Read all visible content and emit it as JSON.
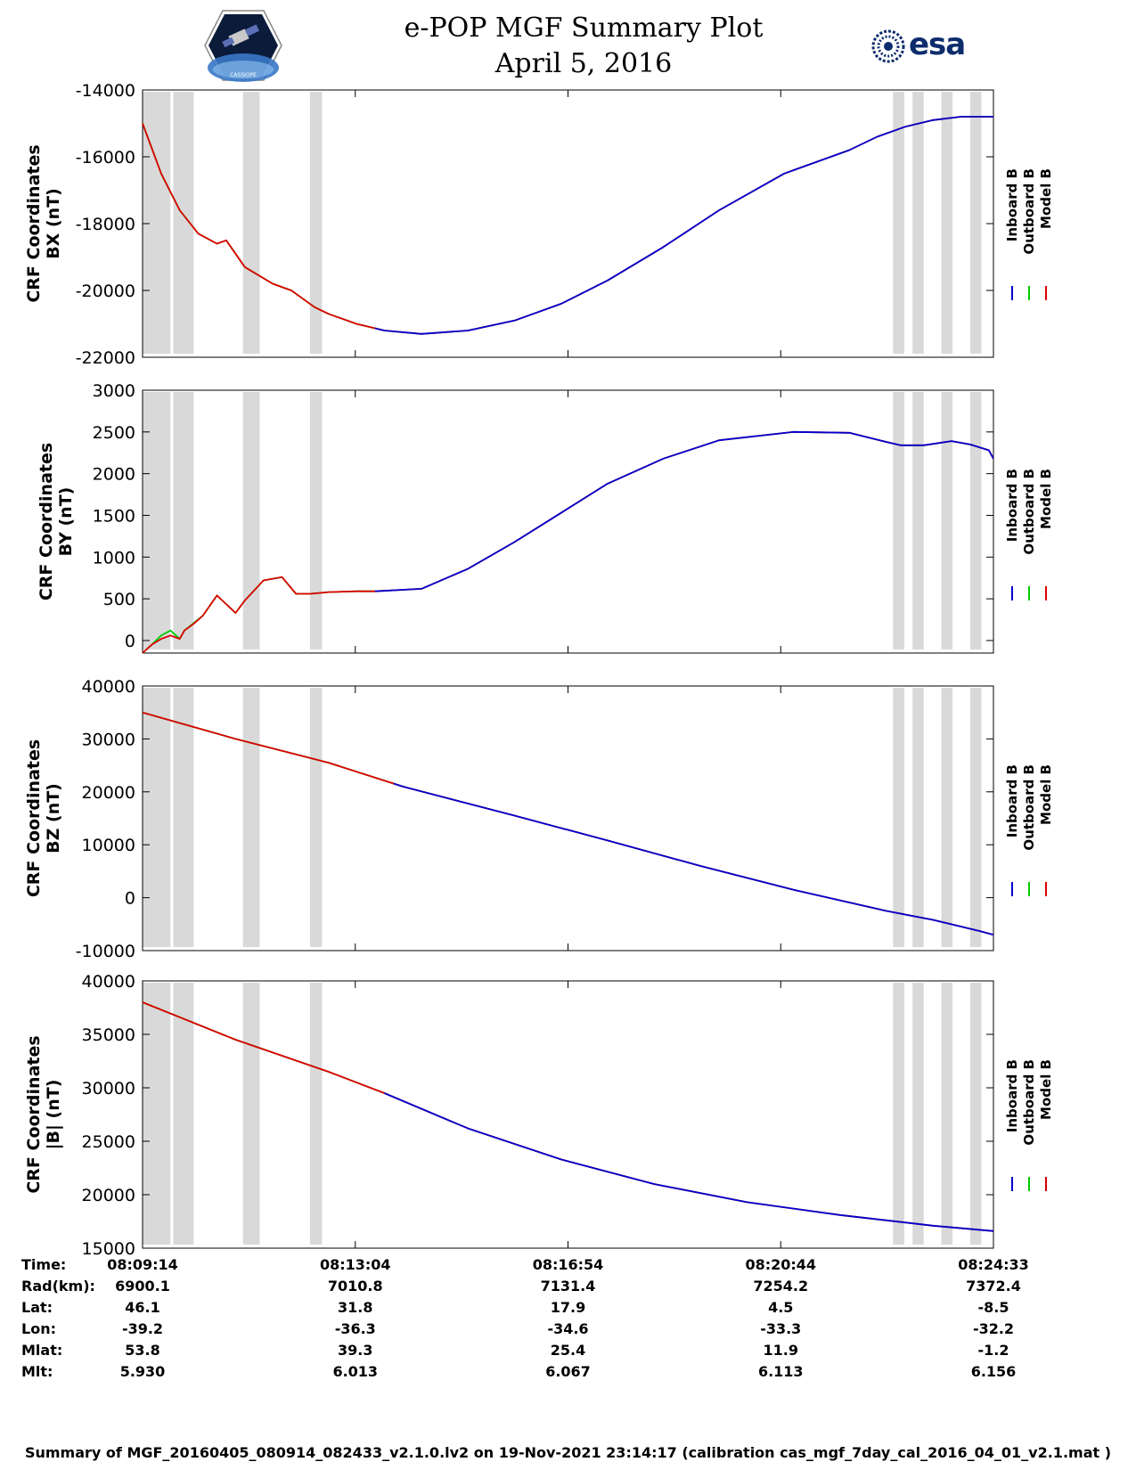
{
  "header": {
    "title": "e-POP MGF Summary Plot",
    "date": "April 5, 2016",
    "logo_left": "CASSIOPE",
    "logo_right": "esa"
  },
  "legend": {
    "items": [
      "Inboard B",
      "Outboard B",
      "Model B"
    ]
  },
  "colors": {
    "inboard": "#0000cc",
    "outboard": "#00cc00",
    "model": "#dd0000",
    "shade": "#d9d9d9"
  },
  "chart_data": [
    {
      "type": "line",
      "panel": "bx",
      "ylabel1": "CRF Coordinates",
      "ylabel2": "BX (nT)",
      "ylim": [
        -22000,
        -14000
      ],
      "yticks": [
        -14000,
        -16000,
        -18000,
        -20000,
        -22000
      ],
      "ytick_labels": [
        "-14000",
        "-16000",
        "-18000",
        "-20000",
        "-22000"
      ],
      "x": [
        0,
        20,
        40,
        60,
        80,
        90,
        100,
        110,
        140,
        160,
        175,
        185,
        200,
        230,
        260,
        300,
        350,
        400,
        450,
        500,
        560,
        620,
        690,
        760,
        790,
        820,
        850,
        880,
        915
      ],
      "series": [
        {
          "name": "Outboard B",
          "color": "#00cc00",
          "upto": 250,
          "values": [
            -15000,
            -16500,
            -17600,
            -18300,
            -18600,
            -18500,
            -18900,
            -19300,
            -19800,
            -20000,
            -20300,
            -20500,
            -20700,
            -21000,
            -21200,
            -21300,
            -21200,
            -20900,
            -20400,
            -19700,
            -18700,
            -17600,
            -16500,
            -15800,
            -15400,
            -15100,
            -14900,
            -14800,
            -14800
          ]
        },
        {
          "name": "Model B",
          "color": "#dd0000",
          "values": [
            -15000,
            -16500,
            -17600,
            -18300,
            -18600,
            -18500,
            -18900,
            -19300,
            -19800,
            -20000,
            -20300,
            -20500,
            -20700,
            -21000,
            -21200,
            -21300,
            -21200,
            -20900,
            -20400,
            -19700,
            -18700,
            -17600,
            -16500,
            -15800,
            -15400,
            -15100,
            -14900,
            -14800,
            -14800
          ]
        },
        {
          "name": "Inboard B",
          "color": "#0000cc",
          "from": 250,
          "values": [
            -15000,
            -16500,
            -17600,
            -18300,
            -18600,
            -18500,
            -18900,
            -19300,
            -19800,
            -20000,
            -20300,
            -20500,
            -20700,
            -21000,
            -21200,
            -21300,
            -21200,
            -20900,
            -20400,
            -19700,
            -18700,
            -17600,
            -16500,
            -15800,
            -15400,
            -15100,
            -14900,
            -14800,
            -14800
          ]
        }
      ]
    },
    {
      "type": "line",
      "panel": "by",
      "ylabel1": "CRF Coordinates",
      "ylabel2": "BY (nT)",
      "ylim": [
        -150,
        3000
      ],
      "yticks": [
        3000,
        2500,
        2000,
        1500,
        1000,
        500,
        0
      ],
      "ytick_labels": [
        "3000",
        "2500",
        "2000",
        "1500",
        "1000",
        "500",
        "0"
      ],
      "x": [
        0,
        10,
        20,
        30,
        40,
        45,
        55,
        65,
        80,
        100,
        110,
        120,
        130,
        150,
        165,
        180,
        190,
        200,
        230,
        250,
        300,
        350,
        400,
        450,
        500,
        560,
        620,
        700,
        760,
        800,
        815,
        840,
        870,
        890,
        910,
        915
      ],
      "series": [
        {
          "name": "Outboard B",
          "color": "#00cc00",
          "upto": 250,
          "values": [
            -150,
            -50,
            60,
            120,
            20,
            120,
            210,
            300,
            540,
            330,
            480,
            600,
            720,
            760,
            560,
            560,
            570,
            580,
            590,
            590,
            620,
            860,
            1180,
            1530,
            1880,
            2180,
            2400,
            2500,
            2490,
            2380,
            2340,
            2340,
            2390,
            2350,
            2280,
            2180
          ]
        },
        {
          "name": "Model B",
          "color": "#dd0000",
          "values": [
            -150,
            -50,
            20,
            60,
            20,
            120,
            200,
            300,
            540,
            330,
            480,
            600,
            720,
            760,
            560,
            560,
            570,
            580,
            590,
            590,
            620,
            860,
            1180,
            1530,
            1880,
            2180,
            2400,
            2500,
            2490,
            2380,
            2340,
            2340,
            2390,
            2350,
            2280,
            2180
          ]
        },
        {
          "name": "Inboard B",
          "color": "#0000cc",
          "from": 250,
          "values": [
            -150,
            -50,
            20,
            60,
            20,
            120,
            200,
            300,
            540,
            330,
            480,
            600,
            720,
            760,
            560,
            560,
            570,
            580,
            590,
            590,
            620,
            860,
            1180,
            1530,
            1880,
            2180,
            2400,
            2500,
            2490,
            2380,
            2340,
            2340,
            2390,
            2350,
            2280,
            2180
          ]
        }
      ]
    },
    {
      "type": "line",
      "panel": "bz",
      "ylabel1": "CRF Coordinates",
      "ylabel2": "BZ (nT)",
      "ylim": [
        -10000,
        40000
      ],
      "yticks": [
        40000,
        30000,
        20000,
        10000,
        0,
        -10000
      ],
      "ytick_labels": [
        "40000",
        "30000",
        "20000",
        "10000",
        "0",
        "-10000"
      ],
      "x": [
        0,
        100,
        200,
        280,
        400,
        500,
        600,
        700,
        800,
        850,
        900,
        915
      ],
      "series": [
        {
          "name": "Outboard B",
          "color": "#00cc00",
          "upto": 270,
          "values": [
            35000,
            30000,
            25500,
            21000,
            15500,
            10800,
            6000,
            1500,
            -2500,
            -4200,
            -6300,
            -7000
          ]
        },
        {
          "name": "Model B",
          "color": "#dd0000",
          "values": [
            35000,
            30000,
            25500,
            21000,
            15500,
            10800,
            6000,
            1500,
            -2500,
            -4200,
            -6300,
            -7000
          ]
        },
        {
          "name": "Inboard B",
          "color": "#0000cc",
          "from": 270,
          "values": [
            35000,
            30000,
            25500,
            21000,
            15500,
            10800,
            6000,
            1500,
            -2500,
            -4200,
            -6300,
            -7000
          ]
        }
      ]
    },
    {
      "type": "line",
      "panel": "bmag",
      "ylabel1": "CRF Coordinates",
      "ylabel2": "|B| (nT)",
      "ylim": [
        15000,
        40000
      ],
      "yticks": [
        40000,
        35000,
        30000,
        25000,
        20000,
        15000
      ],
      "ytick_labels": [
        "40000",
        "35000",
        "30000",
        "25000",
        "20000",
        "15000"
      ],
      "x": [
        0,
        100,
        200,
        260,
        350,
        450,
        550,
        650,
        750,
        850,
        915
      ],
      "series": [
        {
          "name": "Outboard B",
          "color": "#00cc00",
          "upto": 260,
          "values": [
            38000,
            34500,
            31500,
            29500,
            26200,
            23300,
            21000,
            19300,
            18100,
            17100,
            16600
          ]
        },
        {
          "name": "Model B",
          "color": "#dd0000",
          "values": [
            38000,
            34500,
            31500,
            29500,
            26200,
            23300,
            21000,
            19300,
            18100,
            17100,
            16600
          ]
        },
        {
          "name": "Inboard B",
          "color": "#0000cc",
          "from": 260,
          "values": [
            38000,
            34500,
            31500,
            29500,
            26200,
            23300,
            21000,
            19300,
            18100,
            17100,
            16600
          ]
        }
      ]
    }
  ],
  "table": {
    "row_labels": [
      "Time:",
      "Rad(km):",
      "Lat:",
      "Lon:",
      "Mlat:",
      "Mlt:"
    ],
    "columns": [
      [
        "08:09:14",
        "6900.1",
        "46.1",
        "-39.2",
        "53.8",
        "5.930"
      ],
      [
        "08:13:04",
        "7010.8",
        "31.8",
        "-36.3",
        "39.3",
        "6.013"
      ],
      [
        "08:16:54",
        "7131.4",
        "17.9",
        "-34.6",
        "25.4",
        "6.067"
      ],
      [
        "08:20:44",
        "7254.2",
        "4.5",
        "-33.3",
        "11.9",
        "6.113"
      ],
      [
        "08:24:33",
        "7372.4",
        "-8.5",
        "-32.2",
        "-1.2",
        "6.156"
      ]
    ]
  },
  "footer": "Summary of MGF_20160405_080914_082433_v2.1.0.lv2 on 19-Nov-2021 23:14:17 (calibration cas_mgf_7day_cal_2016_04_01_v2.1.mat )"
}
